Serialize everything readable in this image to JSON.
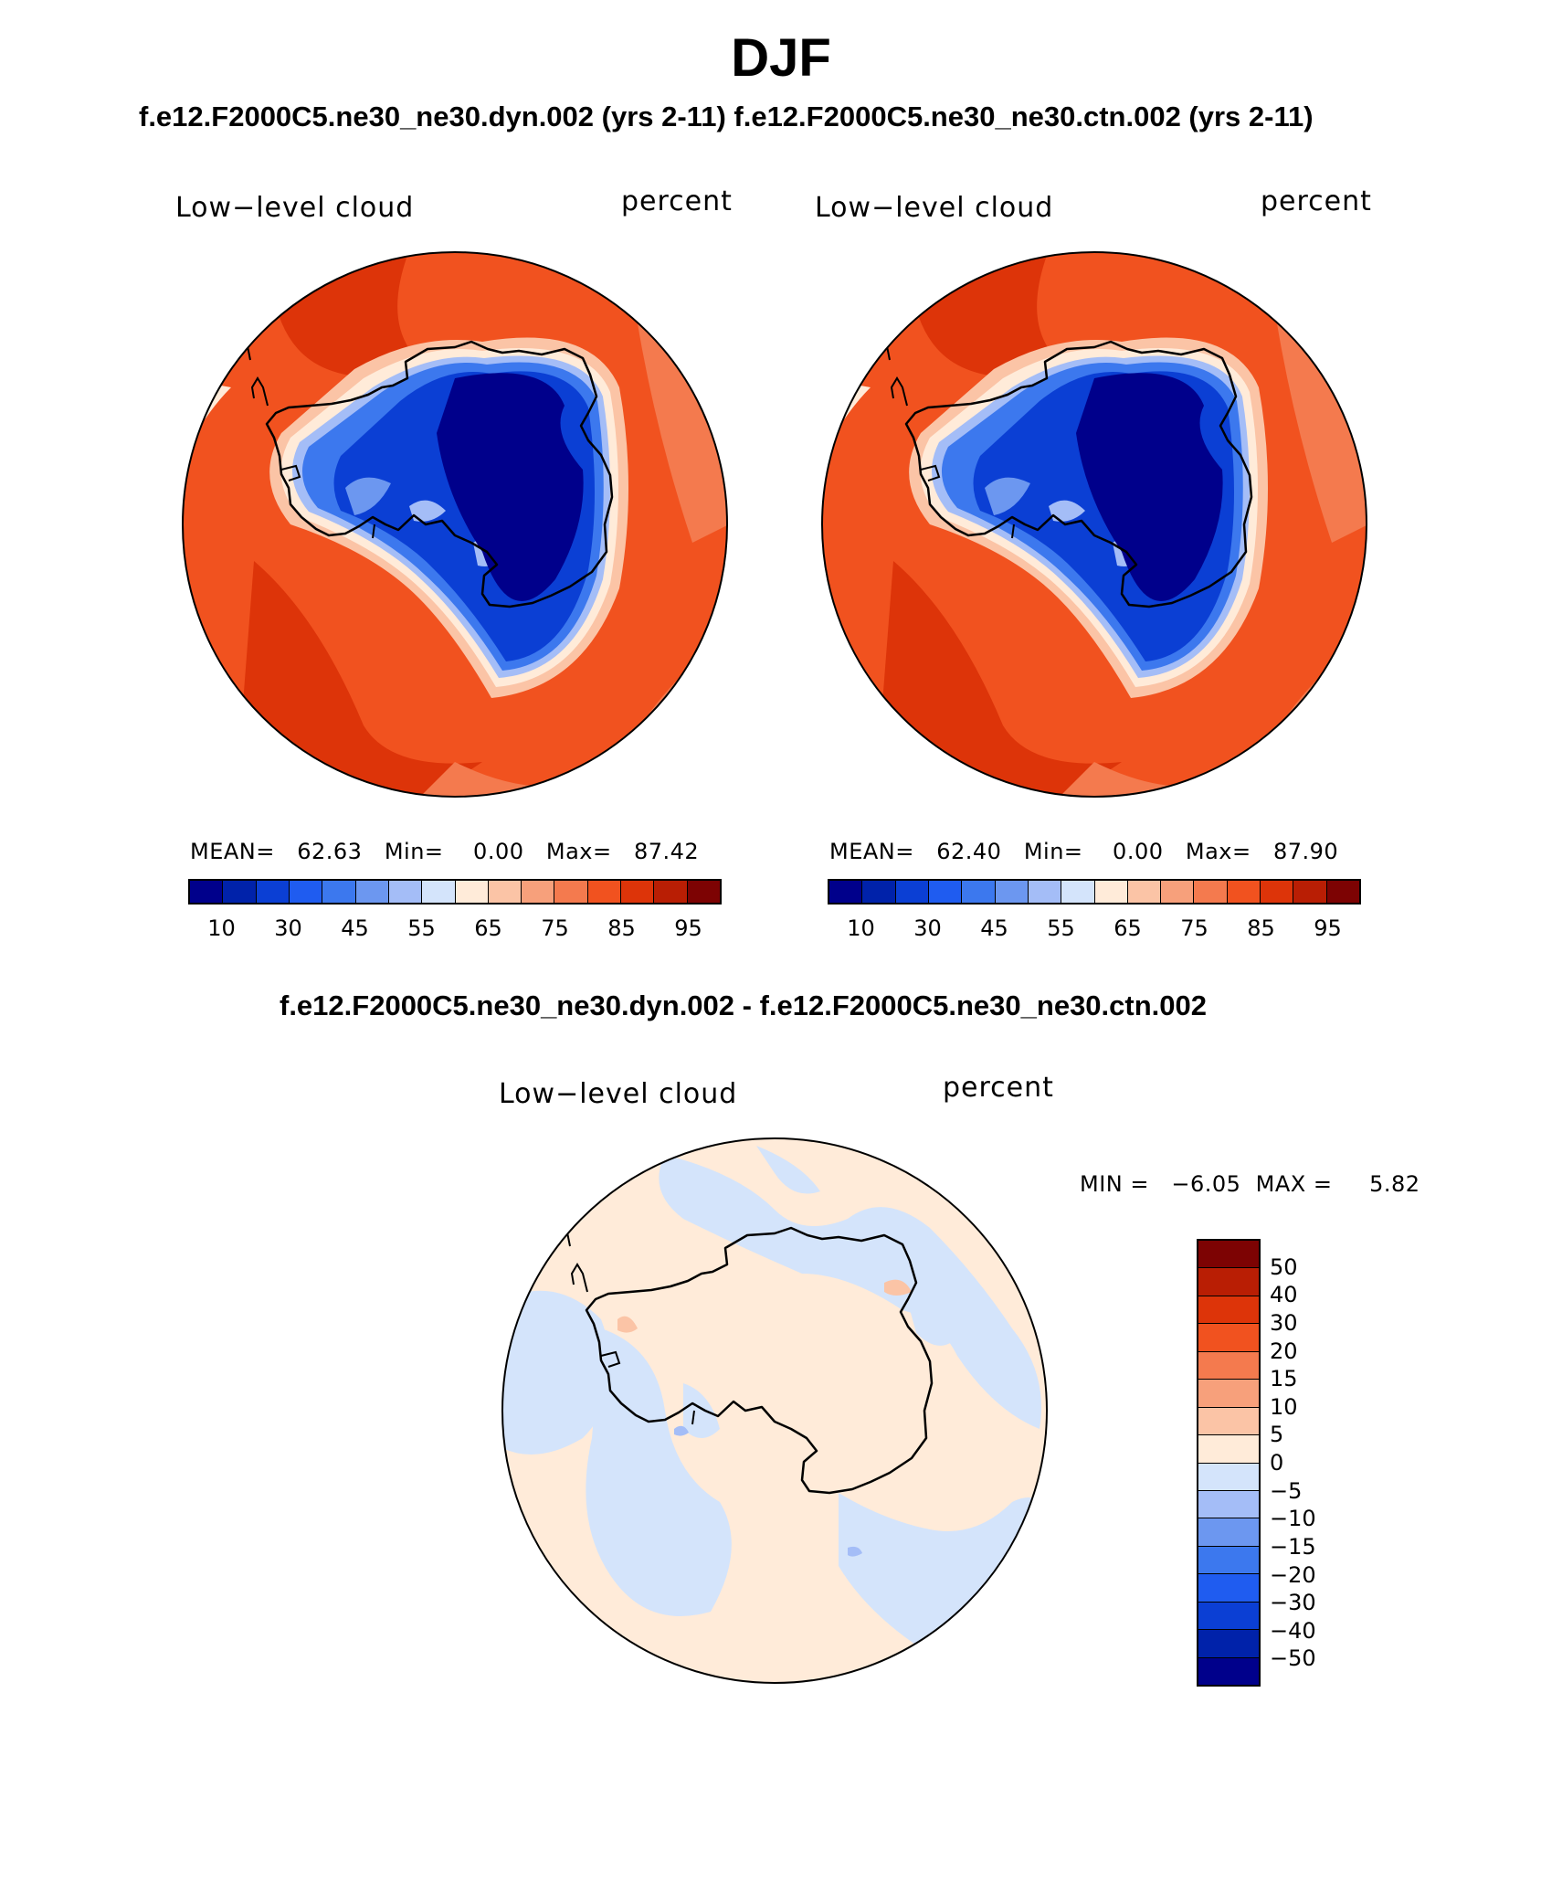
{
  "title": "DJF",
  "subtitle_top": "f.e12.F2000C5.ne30_ne30.dyn.002 (yrs 2-11)  f.e12.F2000C5.ne30_ne30.ctn.002 (yrs 2-11)",
  "subtitle_diff": "f.e12.F2000C5.ne30_ne30.dyn.002 - f.e12.F2000C5.ne30_ne30.ctn.002",
  "panels": [
    {
      "variable": "Low−level cloud",
      "units": "percent",
      "stats": "MEAN=   62.63   Min=    0.00   Max=   87.42"
    },
    {
      "variable": "Low−level cloud",
      "units": "percent",
      "stats": "MEAN=   62.40   Min=    0.00   Max=   87.90"
    }
  ],
  "diff_panel": {
    "variable": "Low−level cloud",
    "units": "percent",
    "stats": "MIN =   −6.05  MAX =     5.82"
  },
  "colorbar_top": {
    "colors": [
      "#00008b",
      "#0022aa",
      "#0b3fd4",
      "#1f5cf0",
      "#3c78ee",
      "#6c97f0",
      "#a4bdf7",
      "#d4e4fb",
      "#ffebd9",
      "#fbc4a6",
      "#f7a07b",
      "#f47a4e",
      "#f1521f",
      "#dd3409",
      "#b91e04",
      "#7d0303"
    ],
    "labels": [
      "10",
      "30",
      "45",
      "55",
      "65",
      "75",
      "85",
      "95"
    ]
  },
  "colorbar_diff": {
    "colors": [
      "#7d0303",
      "#b91e04",
      "#dd3409",
      "#f1521f",
      "#f47a4e",
      "#f7a07b",
      "#fbc4a6",
      "#ffebd9",
      "#d4e4fb",
      "#a4bdf7",
      "#6c97f0",
      "#3c78ee",
      "#1f5cf0",
      "#0b3fd4",
      "#0022aa",
      "#00008b"
    ],
    "labels": [
      "50",
      "40",
      "30",
      "20",
      "15",
      "10",
      "5",
      "0",
      "−5",
      "−10",
      "−15",
      "−20",
      "−30",
      "−40",
      "−50"
    ]
  }
}
